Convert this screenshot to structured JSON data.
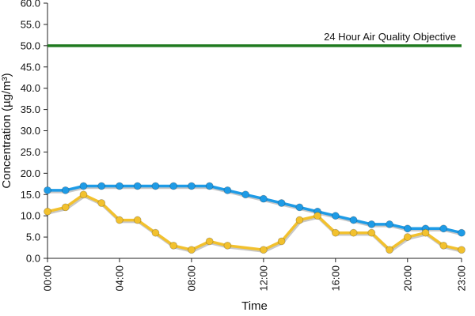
{
  "chart_data": {
    "type": "line",
    "xlabel": "Time",
    "ylabel": "Concentration (µg/m³)",
    "ylim": [
      0,
      60
    ],
    "yticks": [
      "0.0",
      "5.0",
      "10.0",
      "15.0",
      "20.0",
      "25.0",
      "30.0",
      "35.0",
      "40.0",
      "45.0",
      "50.0",
      "55.0",
      "60.0"
    ],
    "xticks": [
      "00:00",
      "04:00",
      "08:00",
      "12:00",
      "16:00",
      "20:00",
      "23:00"
    ],
    "x": [
      "00:00",
      "01:00",
      "02:00",
      "03:00",
      "04:00",
      "05:00",
      "06:00",
      "07:00",
      "08:00",
      "09:00",
      "10:00",
      "11:00",
      "12:00",
      "13:00",
      "14:00",
      "15:00",
      "16:00",
      "17:00",
      "18:00",
      "19:00",
      "20:00",
      "21:00",
      "22:00",
      "23:00"
    ],
    "grid": false,
    "series": [
      {
        "color": "#1e9be6",
        "values": [
          16,
          16,
          17,
          17,
          17,
          17,
          17,
          17,
          17,
          17,
          16,
          15,
          14,
          13,
          12,
          11,
          10,
          9,
          8,
          8,
          7,
          7,
          7,
          6
        ]
      },
      {
        "color": "#f2c12e",
        "values": [
          11,
          12,
          15,
          13,
          9,
          9,
          6,
          3,
          2,
          4,
          3,
          null,
          2,
          4,
          9,
          10,
          6,
          6,
          6,
          2,
          5,
          6,
          3,
          2
        ]
      }
    ],
    "reference_line": {
      "value": 50,
      "label": "24 Hour Air Quality Objective",
      "color": "#1f7a1f"
    }
  }
}
